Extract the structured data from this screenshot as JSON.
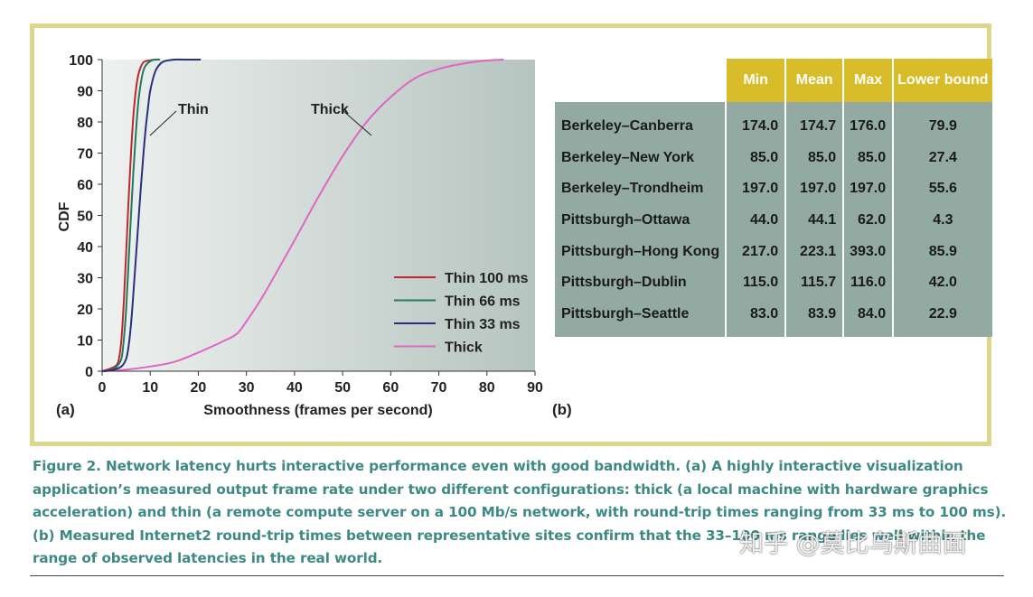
{
  "chart_data": [
    {
      "type": "line",
      "panel_label": "(a)",
      "xlabel": "Smoothness (frames per second)",
      "ylabel": "CDF",
      "xlim": [
        0,
        90
      ],
      "ylim": [
        0,
        100
      ],
      "xticks": [
        0,
        10,
        20,
        30,
        40,
        50,
        60,
        70,
        80,
        90
      ],
      "yticks": [
        0,
        10,
        20,
        30,
        40,
        50,
        60,
        70,
        80,
        90,
        100
      ],
      "grid": false,
      "legend_position": "bottom-right",
      "series": [
        {
          "name": "Thin 100 ms",
          "color": "#c0272d",
          "x": [
            0,
            2,
            3,
            3.5,
            4,
            4.5,
            5,
            5.5,
            6,
            6.5,
            7,
            7.5,
            8,
            8.5,
            9,
            10,
            11,
            11.5
          ],
          "y": [
            0,
            1,
            2,
            4,
            10,
            22,
            38,
            55,
            70,
            82,
            90,
            95,
            97.5,
            99,
            99.5,
            99.8,
            100,
            100
          ]
        },
        {
          "name": "Thin 66 ms",
          "color": "#1f7a5e",
          "x": [
            0,
            2,
            3,
            4,
            4.5,
            5,
            5.5,
            6,
            6.5,
            7,
            7.5,
            8,
            8.5,
            9,
            10,
            11,
            12
          ],
          "y": [
            0,
            0.5,
            1.5,
            4,
            10,
            20,
            35,
            50,
            64,
            76,
            86,
            92,
            96,
            98,
            99.5,
            100,
            100
          ]
        },
        {
          "name": "Thin 33 ms",
          "color": "#2a2f7f",
          "x": [
            0,
            2,
            4,
            5,
            5.5,
            6,
            6.5,
            7,
            7.5,
            8,
            8.5,
            9,
            9.5,
            10,
            11,
            12,
            13,
            15,
            17,
            20.5
          ],
          "y": [
            0,
            0.3,
            1.5,
            4,
            8,
            15,
            25,
            36,
            47,
            58,
            68,
            77,
            84,
            90,
            96,
            98.5,
            99.5,
            100,
            100,
            100
          ]
        },
        {
          "name": "Thick",
          "color": "#e066c4",
          "x": [
            0,
            5,
            10,
            15,
            20,
            25,
            28,
            30,
            33,
            36,
            40,
            45,
            50,
            55,
            60,
            65,
            70,
            75,
            80,
            83.5
          ],
          "y": [
            0,
            0.5,
            1.5,
            3,
            6,
            9.5,
            12,
            16,
            23,
            31,
            42,
            56,
            69,
            80,
            88,
            94,
            97,
            98.7,
            99.7,
            100
          ]
        }
      ],
      "annotations": [
        {
          "text": "Thin",
          "target_series": "Thin 33 ms"
        },
        {
          "text": "Thick",
          "target_series": "Thick"
        }
      ]
    },
    {
      "type": "table",
      "panel_label": "(b)",
      "columns": [
        "Min",
        "Mean",
        "Max",
        "Lower bound"
      ],
      "rows": [
        {
          "site": "Berkeley–Canberra",
          "min": "174.0",
          "mean": "174.7",
          "max": "176.0",
          "lower": "79.9"
        },
        {
          "site": "Berkeley–New York",
          "min": "85.0",
          "mean": "85.0",
          "max": "85.0",
          "lower": "27.4"
        },
        {
          "site": "Berkeley–Trondheim",
          "min": "197.0",
          "mean": "197.0",
          "max": "197.0",
          "lower": "55.6"
        },
        {
          "site": "Pittsburgh–Ottawa",
          "min": "44.0",
          "mean": "44.1",
          "max": "62.0",
          "lower": "4.3"
        },
        {
          "site": "Pittsburgh–Hong Kong",
          "min": "217.0",
          "mean": "223.1",
          "max": "393.0",
          "lower": "85.9"
        },
        {
          "site": "Pittsburgh–Dublin",
          "min": "115.0",
          "mean": "115.7",
          "max": "116.0",
          "lower": "42.0"
        },
        {
          "site": "Pittsburgh–Seattle",
          "min": "83.0",
          "mean": "83.9",
          "max": "84.0",
          "lower": "22.9"
        }
      ]
    }
  ],
  "caption": "Figure 2. Network latency hurts interactive performance even with good bandwidth. (a) A highly interactive visualization application’s measured output frame rate under two different configurations: thick (a local machine with hardware graphics acceleration) and thin (a remote compute server on a 100 Mb/s network, with round-trip times ranging from 33 ms to 100 ms). (b) Measured Internet2 round-trip times between representative sites confirm that the 33–100 ms range lies well within the range of observed latencies in the real world.",
  "watermark": "知乎 @莫比乌斯曲面",
  "colors": {
    "frame": "#ddd78c",
    "table_header": "#d8bc2a",
    "table_body": "#93aaa3",
    "caption": "#3e8984"
  }
}
